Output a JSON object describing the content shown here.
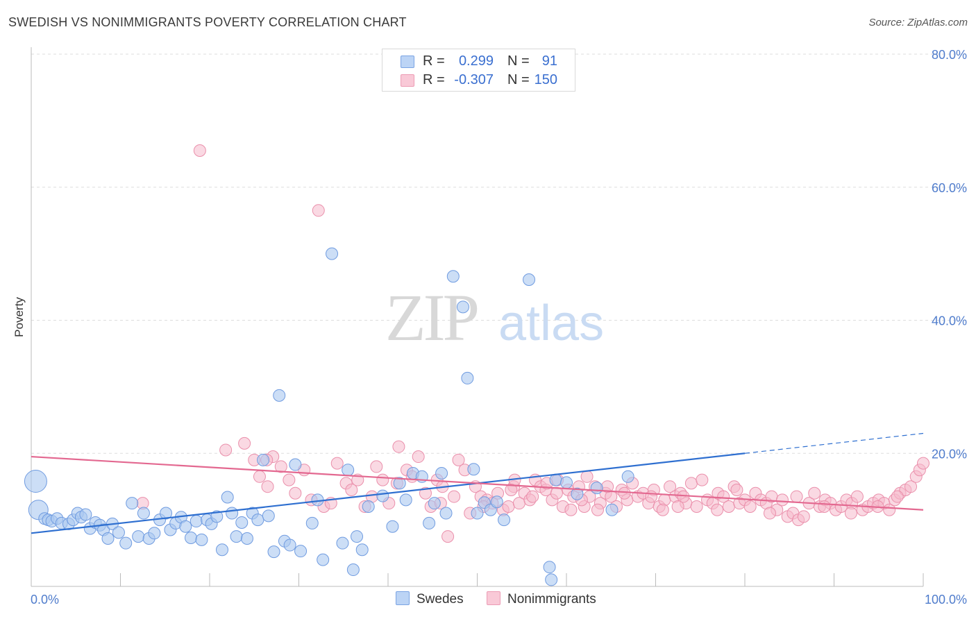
{
  "title": "SWEDISH VS NONIMMIGRANTS POVERTY CORRELATION CHART",
  "source": "Source: ZipAtlas.com",
  "watermark": {
    "zip": "ZIP",
    "atlas": "atlas"
  },
  "colors": {
    "swedes_fill": "#aac8f0",
    "swedes_stroke": "#6f9be0",
    "swedes_line": "#2e6fd0",
    "nonimm_fill": "#f6b9cc",
    "nonimm_stroke": "#ea8fab",
    "nonimm_line": "#e36890",
    "tick": "#4f7ccc",
    "grid": "#dddddd"
  },
  "legend": {
    "rows": [
      {
        "r_label": "R =",
        "r_value": "0.299",
        "n_label": "N =",
        "n_value": "91"
      },
      {
        "r_label": "R =",
        "r_value": "-0.307",
        "n_label": "N =",
        "n_value": "150"
      }
    ]
  },
  "chart_data": {
    "type": "scatter",
    "xlabel": "",
    "ylabel": "Poverty",
    "xlim": [
      0,
      100
    ],
    "ylim": [
      0,
      80
    ],
    "x_ticks": [
      "0.0%",
      "100.0%"
    ],
    "y_ticks": [
      {
        "value": 20,
        "label": "20.0%"
      },
      {
        "value": 40,
        "label": "40.0%"
      },
      {
        "value": 60,
        "label": "60.0%"
      },
      {
        "value": 80,
        "label": "80.0%"
      }
    ],
    "grid": true,
    "legend_position": "top-center",
    "series": [
      {
        "name": "Swedes",
        "trend": {
          "x": [
            0,
            80
          ],
          "y": [
            8.0,
            20.0
          ],
          "dashed_to": [
            100,
            23.0
          ]
        },
        "points": [
          [
            0.5,
            15.8
          ],
          [
            0.8,
            11.5
          ],
          [
            1.5,
            10.2
          ],
          [
            1.9,
            10.0
          ],
          [
            2.3,
            9.8
          ],
          [
            2.9,
            10.2
          ],
          [
            3.4,
            9.5
          ],
          [
            4.2,
            9.4
          ],
          [
            4.7,
            10.0
          ],
          [
            5.2,
            11.0
          ],
          [
            5.6,
            10.4
          ],
          [
            6.1,
            10.8
          ],
          [
            6.6,
            8.7
          ],
          [
            7.2,
            9.6
          ],
          [
            7.7,
            9.2
          ],
          [
            8.1,
            8.5
          ],
          [
            8.6,
            7.2
          ],
          [
            9.1,
            9.4
          ],
          [
            9.8,
            8.1
          ],
          [
            10.6,
            6.5
          ],
          [
            11.3,
            12.5
          ],
          [
            12.0,
            7.5
          ],
          [
            12.6,
            11.0
          ],
          [
            13.2,
            7.2
          ],
          [
            13.8,
            8.0
          ],
          [
            14.4,
            10.0
          ],
          [
            15.1,
            11.0
          ],
          [
            15.6,
            8.5
          ],
          [
            16.2,
            9.5
          ],
          [
            16.8,
            10.4
          ],
          [
            17.3,
            9.0
          ],
          [
            17.9,
            7.3
          ],
          [
            18.5,
            9.8
          ],
          [
            19.1,
            7.0
          ],
          [
            19.7,
            10.0
          ],
          [
            20.2,
            9.4
          ],
          [
            20.8,
            10.5
          ],
          [
            21.4,
            5.5
          ],
          [
            22.0,
            13.4
          ],
          [
            22.5,
            11.0
          ],
          [
            23.0,
            7.5
          ],
          [
            23.6,
            9.6
          ],
          [
            24.2,
            7.2
          ],
          [
            24.8,
            11.0
          ],
          [
            25.4,
            10.0
          ],
          [
            26.0,
            19.0
          ],
          [
            26.6,
            10.6
          ],
          [
            27.2,
            5.2
          ],
          [
            27.8,
            28.7
          ],
          [
            28.4,
            6.8
          ],
          [
            29.0,
            6.2
          ],
          [
            29.6,
            18.3
          ],
          [
            30.2,
            5.3
          ],
          [
            31.5,
            9.5
          ],
          [
            32.1,
            13.0
          ],
          [
            32.7,
            4.0
          ],
          [
            33.7,
            50.0
          ],
          [
            34.9,
            6.5
          ],
          [
            35.5,
            17.5
          ],
          [
            36.1,
            2.5
          ],
          [
            36.5,
            7.5
          ],
          [
            37.1,
            5.5
          ],
          [
            37.8,
            12.0
          ],
          [
            39.4,
            13.6
          ],
          [
            40.5,
            9.0
          ],
          [
            41.3,
            15.5
          ],
          [
            42.0,
            13.0
          ],
          [
            42.8,
            17.0
          ],
          [
            43.8,
            16.5
          ],
          [
            44.6,
            9.5
          ],
          [
            45.2,
            12.5
          ],
          [
            46.0,
            17.0
          ],
          [
            46.5,
            11.0
          ],
          [
            47.3,
            46.6
          ],
          [
            48.4,
            42.0
          ],
          [
            48.9,
            31.3
          ],
          [
            49.6,
            17.6
          ],
          [
            50.0,
            11.0
          ],
          [
            50.8,
            12.6
          ],
          [
            51.5,
            11.5
          ],
          [
            52.2,
            12.7
          ],
          [
            53.0,
            10.0
          ],
          [
            55.8,
            46.1
          ],
          [
            58.1,
            2.9
          ],
          [
            58.3,
            1.0
          ],
          [
            58.8,
            16.0
          ],
          [
            60.0,
            15.6
          ],
          [
            61.2,
            13.9
          ],
          [
            63.4,
            14.8
          ],
          [
            65.1,
            11.5
          ],
          [
            66.9,
            16.5
          ]
        ]
      },
      {
        "name": "Nonimmigrants",
        "trend": {
          "x": [
            0,
            100
          ],
          "y": [
            19.5,
            11.5
          ]
        },
        "points": [
          [
            12.5,
            12.5
          ],
          [
            18.9,
            65.5
          ],
          [
            21.8,
            20.5
          ],
          [
            23.9,
            21.5
          ],
          [
            25.0,
            19.0
          ],
          [
            25.6,
            16.5
          ],
          [
            26.5,
            15.0
          ],
          [
            27.1,
            19.5
          ],
          [
            28.0,
            18.0
          ],
          [
            28.9,
            16.0
          ],
          [
            29.6,
            14.0
          ],
          [
            30.6,
            17.5
          ],
          [
            31.4,
            13.0
          ],
          [
            32.2,
            56.5
          ],
          [
            32.8,
            12.0
          ],
          [
            33.6,
            12.5
          ],
          [
            34.3,
            18.5
          ],
          [
            35.3,
            15.5
          ],
          [
            35.9,
            14.5
          ],
          [
            36.6,
            16.0
          ],
          [
            37.4,
            12.0
          ],
          [
            38.2,
            13.5
          ],
          [
            38.7,
            18.0
          ],
          [
            39.4,
            16.0
          ],
          [
            40.1,
            12.5
          ],
          [
            41.0,
            15.5
          ],
          [
            41.2,
            21.0
          ],
          [
            42.1,
            17.5
          ],
          [
            42.7,
            16.5
          ],
          [
            43.4,
            19.5
          ],
          [
            44.2,
            14.0
          ],
          [
            44.8,
            12.0
          ],
          [
            45.5,
            16.0
          ],
          [
            46.1,
            15.0
          ],
          [
            46.7,
            7.5
          ],
          [
            47.4,
            13.5
          ],
          [
            47.9,
            19.0
          ],
          [
            48.6,
            17.5
          ],
          [
            49.2,
            11.0
          ],
          [
            49.8,
            15.0
          ],
          [
            50.4,
            13.5
          ],
          [
            51.1,
            13.0
          ],
          [
            51.7,
            12.5
          ],
          [
            52.3,
            14.0
          ],
          [
            52.9,
            11.5
          ],
          [
            53.5,
            12.0
          ],
          [
            54.1,
            15.0
          ],
          [
            54.7,
            12.5
          ],
          [
            55.3,
            14.0
          ],
          [
            55.9,
            13.0
          ],
          [
            56.5,
            16.0
          ],
          [
            57.1,
            15.0
          ],
          [
            57.7,
            14.5
          ],
          [
            58.4,
            13.0
          ],
          [
            59.0,
            16.0
          ],
          [
            59.6,
            12.0
          ],
          [
            60.2,
            14.5
          ],
          [
            60.8,
            13.5
          ],
          [
            61.4,
            15.0
          ],
          [
            62.0,
            12.0
          ],
          [
            62.6,
            13.5
          ],
          [
            63.2,
            15.0
          ],
          [
            63.8,
            12.5
          ],
          [
            64.4,
            14.0
          ],
          [
            65.0,
            13.5
          ],
          [
            65.6,
            12.0
          ],
          [
            66.2,
            14.5
          ],
          [
            66.8,
            13.0
          ],
          [
            67.4,
            15.5
          ],
          [
            68.0,
            13.5
          ],
          [
            68.6,
            14.0
          ],
          [
            69.2,
            12.5
          ],
          [
            69.8,
            14.5
          ],
          [
            70.4,
            12.0
          ],
          [
            71.0,
            13.0
          ],
          [
            71.6,
            15.0
          ],
          [
            72.2,
            13.5
          ],
          [
            72.8,
            14.0
          ],
          [
            73.4,
            12.5
          ],
          [
            74.0,
            15.5
          ],
          [
            74.6,
            12.0
          ],
          [
            75.2,
            16.0
          ],
          [
            75.8,
            13.0
          ],
          [
            76.4,
            12.5
          ],
          [
            77.0,
            14.0
          ],
          [
            77.6,
            13.5
          ],
          [
            78.2,
            12.0
          ],
          [
            78.8,
            15.0
          ],
          [
            79.4,
            12.5
          ],
          [
            80.0,
            13.0
          ],
          [
            80.6,
            12.0
          ],
          [
            81.2,
            14.0
          ],
          [
            81.8,
            13.0
          ],
          [
            82.4,
            12.5
          ],
          [
            83.0,
            13.5
          ],
          [
            83.6,
            11.5
          ],
          [
            84.2,
            13.0
          ],
          [
            84.8,
            10.5
          ],
          [
            85.4,
            11.0
          ],
          [
            86.0,
            10.0
          ],
          [
            86.6,
            10.5
          ],
          [
            87.2,
            12.5
          ],
          [
            87.8,
            14.0
          ],
          [
            88.4,
            12.0
          ],
          [
            89.0,
            13.0
          ],
          [
            89.6,
            12.5
          ],
          [
            90.2,
            11.5
          ],
          [
            90.8,
            12.0
          ],
          [
            91.4,
            13.0
          ],
          [
            92.0,
            12.5
          ],
          [
            92.6,
            13.5
          ],
          [
            93.2,
            11.5
          ],
          [
            93.8,
            12.0
          ],
          [
            94.4,
            12.5
          ],
          [
            95.0,
            13.0
          ],
          [
            95.6,
            12.5
          ],
          [
            96.2,
            11.5
          ],
          [
            96.8,
            13.0
          ],
          [
            97.4,
            14.0
          ],
          [
            98.0,
            14.5
          ],
          [
            98.6,
            15.0
          ],
          [
            99.2,
            16.5
          ],
          [
            99.6,
            17.5
          ],
          [
            100.0,
            18.5
          ],
          [
            26.4,
            19.0
          ],
          [
            54.2,
            16.0
          ],
          [
            57.8,
            15.5
          ],
          [
            60.5,
            11.5
          ],
          [
            62.3,
            16.5
          ],
          [
            64.6,
            15.0
          ],
          [
            70.8,
            11.5
          ],
          [
            73.1,
            13.5
          ],
          [
            76.9,
            11.5
          ],
          [
            79.1,
            14.5
          ],
          [
            82.8,
            11.0
          ],
          [
            85.8,
            13.5
          ],
          [
            88.9,
            12.0
          ],
          [
            91.9,
            11.0
          ],
          [
            94.9,
            12.0
          ],
          [
            97.1,
            13.5
          ],
          [
            45.9,
            12.5
          ],
          [
            50.7,
            12.0
          ],
          [
            53.8,
            14.5
          ],
          [
            56.2,
            13.5
          ],
          [
            58.9,
            14.0
          ],
          [
            61.7,
            13.0
          ],
          [
            63.5,
            11.5
          ],
          [
            66.5,
            14.0
          ],
          [
            69.5,
            13.5
          ],
          [
            72.5,
            12.0
          ]
        ]
      }
    ]
  },
  "bottom_legend": {
    "swedes": "Swedes",
    "nonimmigrants": "Nonimmigrants"
  }
}
